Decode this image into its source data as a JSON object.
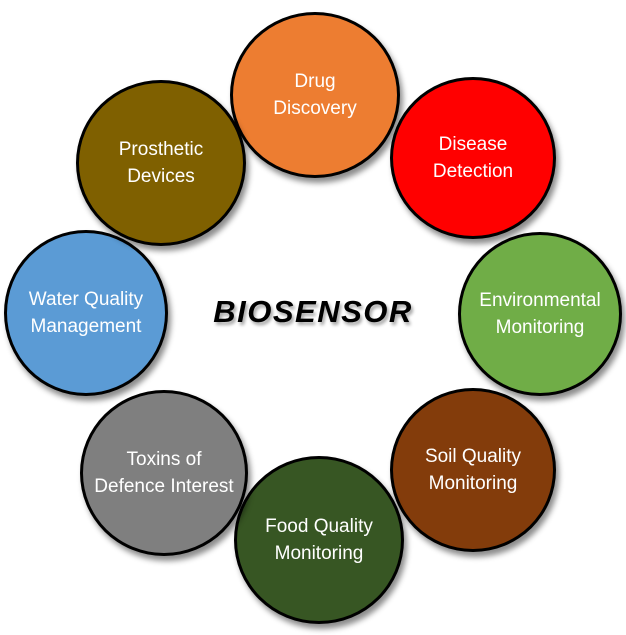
{
  "title": "BIOSENSOR",
  "applications": [
    {
      "label": "Drug\nDiscovery",
      "color": "#ED7D31"
    },
    {
      "label": "Disease\nDetection",
      "color": "#FF0000"
    },
    {
      "label": "Environmental\nMonitoring",
      "color": "#70AD47"
    },
    {
      "label": "Soil Quality\nMonitoring",
      "color": "#833C0B"
    },
    {
      "label": "Food Quality\nMonitoring",
      "color": "#375623"
    },
    {
      "label": "Toxins of\nDefence Interest",
      "color": "#7F7F7F"
    },
    {
      "label": "Water Quality\nManagement",
      "color": "#5B9BD5"
    },
    {
      "label": "Prosthetic\nDevices",
      "color": "#7F6000"
    }
  ]
}
